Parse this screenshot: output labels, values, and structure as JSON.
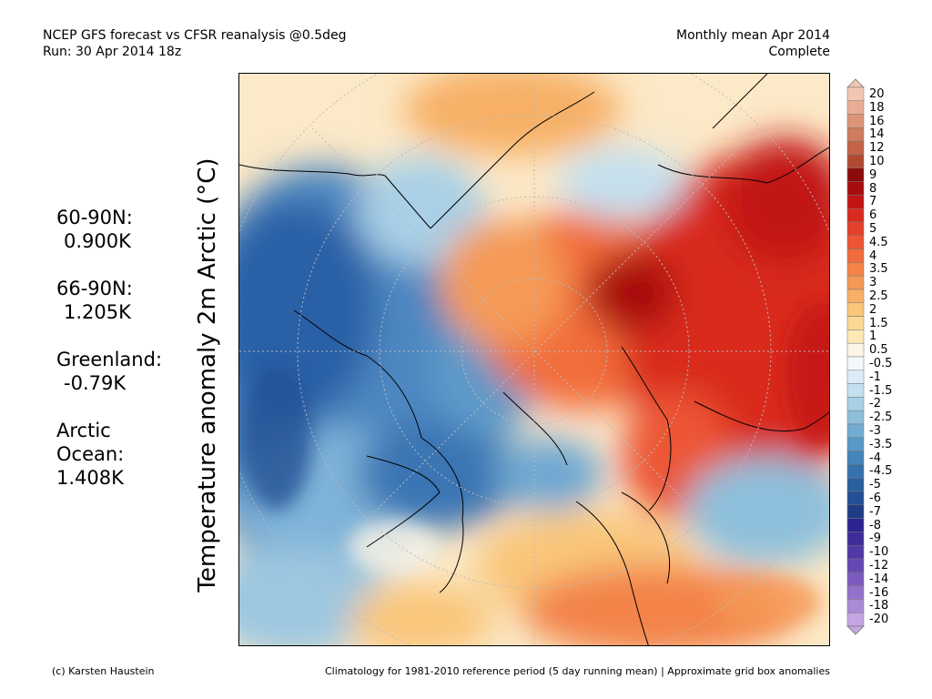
{
  "header": {
    "left_line1": "NCEP GFS forecast vs CFSR reanalysis @0.5deg",
    "left_line2": "Run: 30 Apr 2014 18z",
    "right_line1": "Monthly mean Apr 2014",
    "right_line2": "Complete"
  },
  "ylabel": "Temperature anomaly 2m Arctic (°C)",
  "stats": [
    {
      "label": "60-90N:",
      "value": "0.900K"
    },
    {
      "label": "66-90N:",
      "value": "1.205K"
    },
    {
      "label": "Greenland:",
      "value": "-0.79K"
    },
    {
      "label": "Arctic",
      "label2": "Ocean:",
      "value": "1.408K"
    }
  ],
  "colorbar": {
    "labels": [
      "20",
      "18",
      "16",
      "14",
      "12",
      "10",
      "9",
      "8",
      "7",
      "6",
      "5",
      "4.5",
      "4",
      "3.5",
      "3",
      "2.5",
      "2",
      "1.5",
      "1",
      "0.5",
      "-0.5",
      "-1",
      "-1.5",
      "-2",
      "-2.5",
      "-3",
      "-3.5",
      "-4",
      "-4.5",
      "-5",
      "-6",
      "-7",
      "-8",
      "-9",
      "-10",
      "-12",
      "-14",
      "-16",
      "-18",
      "-20"
    ],
    "colors": [
      "#f2c7b2",
      "#e8ad95",
      "#dc9478",
      "#cf7b5f",
      "#c46348",
      "#b24a33",
      "#8c0a0a",
      "#a80d0d",
      "#c21414",
      "#d92a1f",
      "#e5402b",
      "#ec5634",
      "#f06c3c",
      "#f38348",
      "#f59a56",
      "#f7b066",
      "#f9c67a",
      "#fbd894",
      "#fde8b6",
      "#fdf5e6",
      "#f3f8fb",
      "#dcecf6",
      "#c4e0ef",
      "#a9d0e6",
      "#8dbfdc",
      "#72acd2",
      "#5898c6",
      "#4584ba",
      "#3572ad",
      "#2a5fa0",
      "#244f94",
      "#1e3d86",
      "#2b2490",
      "#3e2c9a",
      "#5138a5",
      "#6648b2",
      "#7b5cbe",
      "#9271ca",
      "#a98ad6",
      "#c3a6e3"
    ]
  },
  "footer": {
    "left": "(c) Karsten Haustein",
    "right": "Climatology for 1981-2010 reference period (5 day running mean) | Approximate grid box anomalies"
  }
}
